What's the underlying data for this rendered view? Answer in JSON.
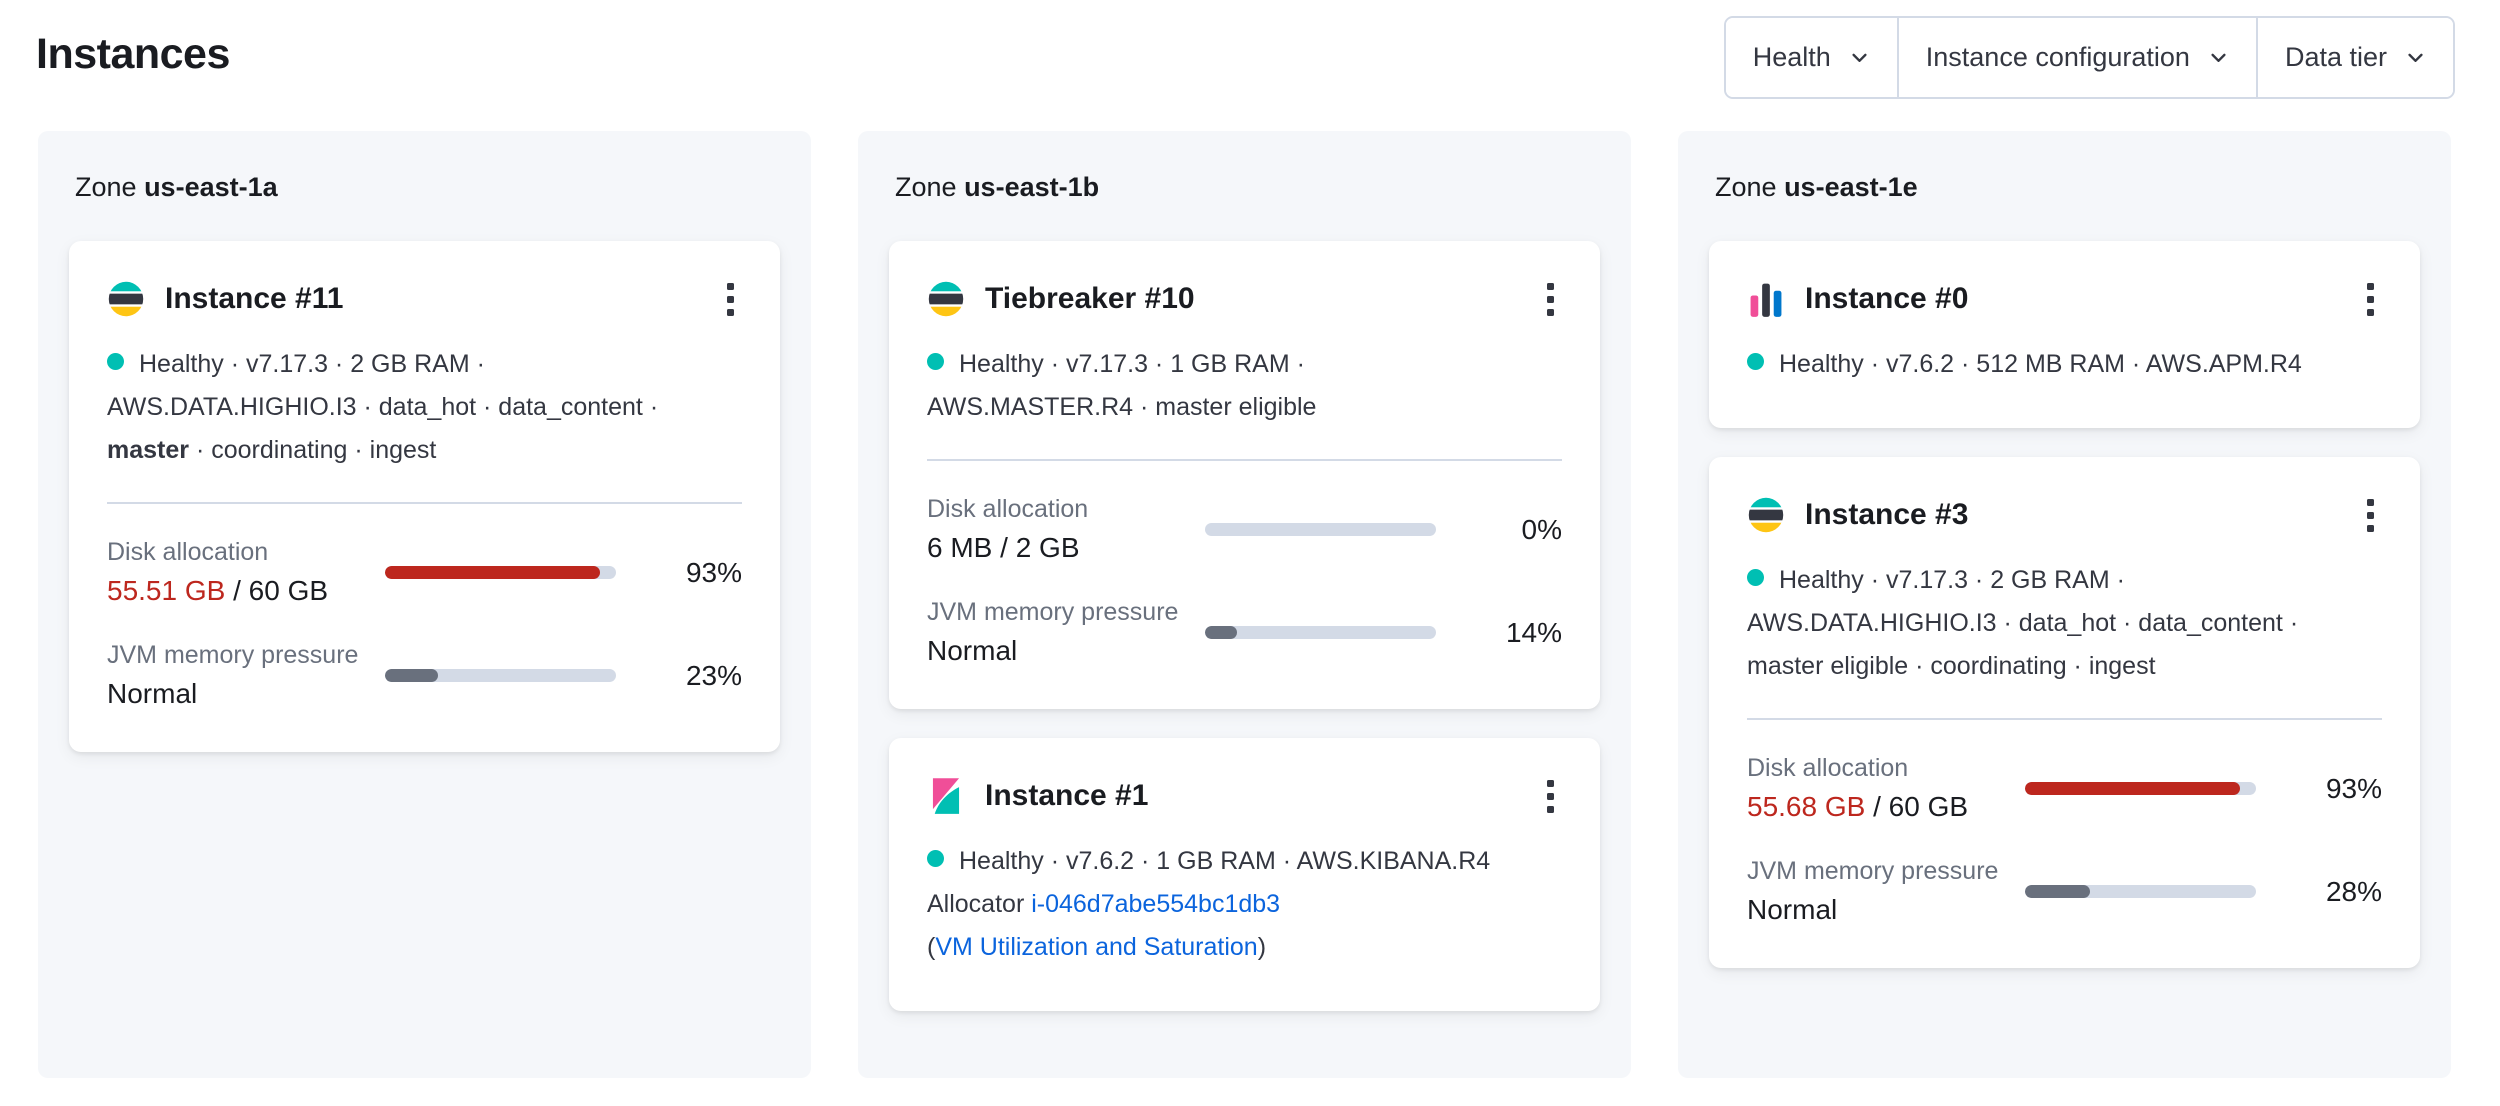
{
  "page": {
    "title": "Instances"
  },
  "filters": {
    "health": "Health",
    "instance_configuration": "Instance configuration",
    "data_tier": "Data tier"
  },
  "zones": [
    {
      "label_prefix": "Zone",
      "name": "us-east-1a",
      "cards": [
        {
          "logo": "elasticsearch",
          "title": "Instance #11",
          "status_line1": "Healthy · v7.17.3 · 2 GB RAM ·",
          "status_line2": "AWS.DATA.HIGHIO.I3 · data_hot · data_content ·",
          "status_line3_bold": "master",
          "status_line3_rest": " · coordinating · ingest",
          "disk": {
            "label": "Disk allocation",
            "used": "55.51 GB",
            "rest": " / 60 GB",
            "percent": 93,
            "percent_label": "93%"
          },
          "jvm": {
            "label": "JVM memory pressure",
            "value": "Normal",
            "percent": 23,
            "percent_label": "23%"
          }
        }
      ]
    },
    {
      "label_prefix": "Zone",
      "name": "us-east-1b",
      "cards": [
        {
          "logo": "elasticsearch",
          "title": "Tiebreaker #10",
          "status_line1": "Healthy · v7.17.3 · 1 GB RAM ·",
          "status_line2": "AWS.MASTER.R4 · master eligible",
          "disk": {
            "label": "Disk allocation",
            "value": "6 MB / 2 GB",
            "percent": 0,
            "percent_label": "0%"
          },
          "jvm": {
            "label": "JVM memory pressure",
            "value": "Normal",
            "percent": 14,
            "percent_label": "14%"
          }
        },
        {
          "logo": "kibana",
          "title": "Instance #1",
          "status_line1": "Healthy · v7.6.2 · 1 GB RAM · AWS.KIBANA.R4",
          "allocator_prefix": "Allocator ",
          "allocator_id": "i-046d7abe554bc1db3",
          "vm_open": "(",
          "vm_link": "VM Utilization and Saturation",
          "vm_close": ")"
        }
      ]
    },
    {
      "label_prefix": "Zone",
      "name": "us-east-1e",
      "cards": [
        {
          "logo": "apm",
          "title": "Instance #0",
          "status_line1": "Healthy · v7.6.2 · 512 MB RAM · AWS.APM.R4"
        },
        {
          "logo": "elasticsearch",
          "title": "Instance #3",
          "status_line1": "Healthy · v7.17.3 · 2 GB RAM ·",
          "status_line2": "AWS.DATA.HIGHIO.I3 · data_hot · data_content ·",
          "status_line3": "master eligible · coordinating · ingest",
          "disk": {
            "label": "Disk allocation",
            "used": "55.68 GB",
            "rest": " / 60 GB",
            "percent": 93,
            "percent_label": "93%"
          },
          "jvm": {
            "label": "JVM memory pressure",
            "value": "Normal",
            "percent": 28,
            "percent_label": "28%"
          }
        }
      ]
    }
  ],
  "colors": {
    "healthy_dot": "#00BFB3",
    "danger_text": "#BD271E",
    "disk_bar_fill": "#BD271E",
    "jvm_bar_fill": "#69707D",
    "bar_track": "#D3DAE6",
    "link": "#0B64DD",
    "zone_panel_bg": "#F5F7FA"
  }
}
